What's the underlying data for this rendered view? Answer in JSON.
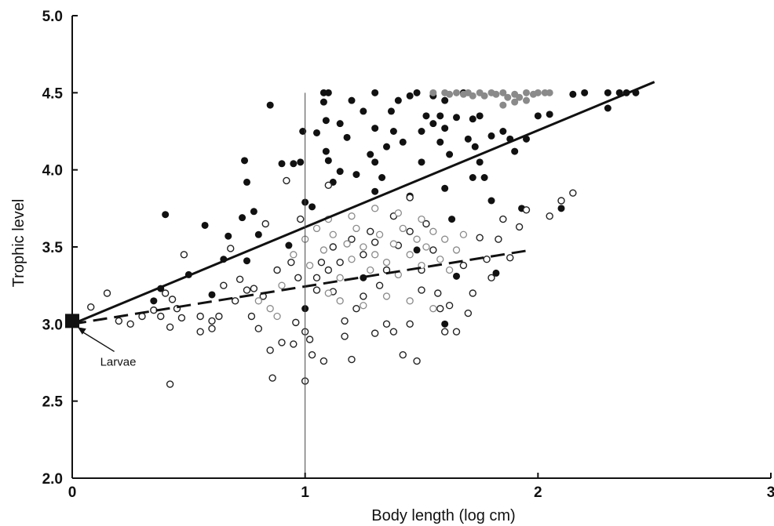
{
  "chart_data": {
    "type": "scatter",
    "title": "",
    "xlabel": "Body length (log cm)",
    "ylabel": "Trophic level",
    "xlim": [
      0,
      3
    ],
    "ylim": [
      2.0,
      5.0
    ],
    "x_ticks": [
      0,
      1,
      2,
      3
    ],
    "x_tick_labels": [
      "0",
      "1",
      "2",
      "3"
    ],
    "y_ticks": [
      2.0,
      2.5,
      3.0,
      3.5,
      4.0,
      4.5,
      5.0
    ],
    "y_tick_labels": [
      "2.0",
      "2.5",
      "3.0",
      "3.5",
      "4.0",
      "4.5",
      "5.0"
    ],
    "grid": false,
    "reference_line_x": 1,
    "colors": {
      "filled": "#111111",
      "open": "#222222",
      "axis": "#111111"
    },
    "series": [
      {
        "marker": "filled-circle",
        "points": [
          [
            0.35,
            3.15
          ],
          [
            0.38,
            3.23
          ],
          [
            0.4,
            3.71
          ],
          [
            0.5,
            3.32
          ],
          [
            0.57,
            3.64
          ],
          [
            0.6,
            3.19
          ],
          [
            0.65,
            3.42
          ],
          [
            0.67,
            3.57
          ],
          [
            0.73,
            3.69
          ],
          [
            0.74,
            4.06
          ],
          [
            0.75,
            3.92
          ],
          [
            0.75,
            3.41
          ],
          [
            0.78,
            3.73
          ],
          [
            0.8,
            3.58
          ],
          [
            0.85,
            4.42
          ],
          [
            0.9,
            4.04
          ],
          [
            0.93,
            3.51
          ],
          [
            0.95,
            4.04
          ],
          [
            0.98,
            4.05
          ],
          [
            0.99,
            4.25
          ],
          [
            1.0,
            3.1
          ],
          [
            1.0,
            3.79
          ],
          [
            1.03,
            3.76
          ],
          [
            1.05,
            4.24
          ],
          [
            1.08,
            4.5
          ],
          [
            1.08,
            4.44
          ],
          [
            1.09,
            4.32
          ],
          [
            1.09,
            4.12
          ],
          [
            1.1,
            4.06
          ],
          [
            1.1,
            4.5
          ],
          [
            1.12,
            3.92
          ],
          [
            1.15,
            4.3
          ],
          [
            1.15,
            3.99
          ],
          [
            1.18,
            4.21
          ],
          [
            1.2,
            4.45
          ],
          [
            1.22,
            3.97
          ],
          [
            1.25,
            4.38
          ],
          [
            1.28,
            4.1
          ],
          [
            1.3,
            4.5
          ],
          [
            1.3,
            4.27
          ],
          [
            1.3,
            4.05
          ],
          [
            1.3,
            3.86
          ],
          [
            1.33,
            3.95
          ],
          [
            1.35,
            4.15
          ],
          [
            1.37,
            4.38
          ],
          [
            1.38,
            4.25
          ],
          [
            1.4,
            4.45
          ],
          [
            1.42,
            4.18
          ],
          [
            1.45,
            4.48
          ],
          [
            1.45,
            3.83
          ],
          [
            1.48,
            4.5
          ],
          [
            1.5,
            4.25
          ],
          [
            1.5,
            4.05
          ],
          [
            1.52,
            4.35
          ],
          [
            1.55,
            4.3
          ],
          [
            1.55,
            4.48
          ],
          [
            1.58,
            4.18
          ],
          [
            1.58,
            4.35
          ],
          [
            1.6,
            4.45
          ],
          [
            1.6,
            4.27
          ],
          [
            1.6,
            3.88
          ],
          [
            1.62,
            4.1
          ],
          [
            1.63,
            3.68
          ],
          [
            1.65,
            4.34
          ],
          [
            1.68,
            4.5
          ],
          [
            1.7,
            4.2
          ],
          [
            1.72,
            4.33
          ],
          [
            1.72,
            3.95
          ],
          [
            1.73,
            4.15
          ],
          [
            1.75,
            4.35
          ],
          [
            1.75,
            4.05
          ],
          [
            1.77,
            3.95
          ],
          [
            1.8,
            3.8
          ],
          [
            1.8,
            4.22
          ],
          [
            1.85,
            4.25
          ],
          [
            1.88,
            4.2
          ],
          [
            1.9,
            4.12
          ],
          [
            1.93,
            3.75
          ],
          [
            1.95,
            4.2
          ],
          [
            2.0,
            4.35
          ],
          [
            2.05,
            4.36
          ],
          [
            2.1,
            3.75
          ],
          [
            2.15,
            4.49
          ],
          [
            2.2,
            4.5
          ],
          [
            2.3,
            4.5
          ],
          [
            2.3,
            4.4
          ],
          [
            2.35,
            4.5
          ],
          [
            2.38,
            4.5
          ],
          [
            2.42,
            4.5
          ],
          [
            1.6,
            3.0
          ],
          [
            1.65,
            3.31
          ],
          [
            1.82,
            3.33
          ],
          [
            1.48,
            3.48
          ],
          [
            1.25,
            3.3
          ]
        ]
      },
      {
        "marker": "open-circle",
        "points": [
          [
            0.08,
            3.11
          ],
          [
            0.15,
            3.2
          ],
          [
            0.2,
            3.02
          ],
          [
            0.25,
            3.0
          ],
          [
            0.3,
            3.05
          ],
          [
            0.35,
            3.09
          ],
          [
            0.38,
            3.05
          ],
          [
            0.4,
            3.2
          ],
          [
            0.42,
            2.98
          ],
          [
            0.43,
            3.16
          ],
          [
            0.45,
            3.1
          ],
          [
            0.47,
            3.04
          ],
          [
            0.48,
            3.45
          ],
          [
            0.42,
            2.61
          ],
          [
            0.55,
            2.95
          ],
          [
            0.6,
            3.02
          ],
          [
            0.63,
            3.05
          ],
          [
            0.65,
            3.25
          ],
          [
            0.7,
            3.15
          ],
          [
            0.72,
            3.29
          ],
          [
            0.75,
            3.22
          ],
          [
            0.77,
            3.05
          ],
          [
            0.8,
            2.97
          ],
          [
            0.82,
            3.18
          ],
          [
            0.85,
            2.83
          ],
          [
            0.86,
            2.65
          ],
          [
            0.88,
            3.35
          ],
          [
            0.9,
            2.88
          ],
          [
            0.92,
            3.93
          ],
          [
            0.94,
            3.4
          ],
          [
            0.95,
            2.87
          ],
          [
            0.96,
            3.01
          ],
          [
            0.98,
            3.68
          ],
          [
            1.0,
            2.63
          ],
          [
            1.0,
            2.95
          ],
          [
            1.02,
            2.9
          ],
          [
            1.03,
            2.8
          ],
          [
            1.05,
            3.3
          ],
          [
            1.07,
            3.4
          ],
          [
            1.08,
            2.76
          ],
          [
            1.1,
            3.35
          ],
          [
            1.1,
            3.9
          ],
          [
            1.12,
            3.21
          ],
          [
            1.15,
            3.4
          ],
          [
            1.17,
            2.92
          ],
          [
            1.2,
            3.55
          ],
          [
            1.2,
            2.77
          ],
          [
            1.22,
            3.1
          ],
          [
            1.25,
            3.45
          ],
          [
            1.28,
            3.6
          ],
          [
            1.3,
            2.94
          ],
          [
            1.32,
            3.25
          ],
          [
            1.35,
            3.0
          ],
          [
            1.38,
            2.95
          ],
          [
            1.38,
            3.7
          ],
          [
            1.4,
            3.51
          ],
          [
            1.42,
            2.8
          ],
          [
            1.45,
            3.6
          ],
          [
            1.45,
            3.0
          ],
          [
            1.48,
            2.76
          ],
          [
            1.5,
            3.35
          ],
          [
            1.52,
            3.65
          ],
          [
            1.55,
            3.48
          ],
          [
            1.57,
            3.2
          ],
          [
            1.6,
            2.95
          ],
          [
            1.62,
            3.12
          ],
          [
            1.65,
            2.95
          ],
          [
            1.68,
            3.38
          ],
          [
            1.7,
            3.07
          ],
          [
            1.72,
            3.2
          ],
          [
            1.75,
            3.56
          ],
          [
            1.78,
            3.42
          ],
          [
            1.8,
            3.3
          ],
          [
            1.83,
            3.55
          ],
          [
            1.85,
            3.68
          ],
          [
            1.88,
            3.43
          ],
          [
            1.92,
            3.63
          ],
          [
            1.95,
            3.74
          ],
          [
            2.05,
            3.7
          ],
          [
            2.1,
            3.8
          ],
          [
            2.15,
            3.85
          ],
          [
            0.55,
            3.05
          ],
          [
            0.6,
            2.97
          ],
          [
            0.68,
            3.49
          ],
          [
            0.78,
            3.23
          ],
          [
            0.83,
            3.65
          ],
          [
            1.17,
            3.02
          ],
          [
            1.25,
            3.18
          ],
          [
            1.58,
            3.1
          ],
          [
            1.5,
            3.22
          ],
          [
            1.35,
            3.35
          ],
          [
            1.3,
            3.53
          ],
          [
            1.12,
            3.5
          ],
          [
            1.05,
            3.22
          ],
          [
            0.97,
            3.3
          ],
          [
            1.45,
            3.82
          ]
        ]
      },
      {
        "marker": "gray-open-circle",
        "points": [
          [
            0.9,
            3.25
          ],
          [
            0.95,
            3.45
          ],
          [
            1.0,
            3.55
          ],
          [
            1.02,
            3.38
          ],
          [
            1.05,
            3.62
          ],
          [
            1.08,
            3.48
          ],
          [
            1.1,
            3.2
          ],
          [
            1.12,
            3.58
          ],
          [
            1.15,
            3.3
          ],
          [
            1.18,
            3.52
          ],
          [
            1.2,
            3.42
          ],
          [
            1.22,
            3.62
          ],
          [
            1.25,
            3.5
          ],
          [
            1.28,
            3.35
          ],
          [
            1.3,
            3.45
          ],
          [
            1.32,
            3.58
          ],
          [
            1.35,
            3.4
          ],
          [
            1.38,
            3.52
          ],
          [
            1.4,
            3.32
          ],
          [
            1.42,
            3.62
          ],
          [
            1.45,
            3.45
          ],
          [
            1.48,
            3.55
          ],
          [
            1.5,
            3.38
          ],
          [
            1.52,
            3.5
          ],
          [
            1.55,
            3.6
          ],
          [
            1.58,
            3.42
          ],
          [
            1.6,
            3.55
          ],
          [
            1.62,
            3.35
          ],
          [
            1.65,
            3.48
          ],
          [
            1.68,
            3.58
          ],
          [
            1.2,
            3.7
          ],
          [
            1.3,
            3.75
          ],
          [
            1.4,
            3.72
          ],
          [
            1.5,
            3.68
          ],
          [
            1.15,
            3.15
          ],
          [
            1.25,
            3.12
          ],
          [
            1.35,
            3.18
          ],
          [
            1.45,
            3.15
          ],
          [
            1.55,
            3.1
          ],
          [
            1.1,
            3.68
          ],
          [
            0.85,
            3.1
          ],
          [
            0.88,
            3.05
          ],
          [
            0.8,
            3.15
          ]
        ]
      },
      {
        "marker": "gray-filled-circle",
        "points": [
          [
            1.55,
            4.5
          ],
          [
            1.6,
            4.5
          ],
          [
            1.62,
            4.49
          ],
          [
            1.65,
            4.5
          ],
          [
            1.68,
            4.49
          ],
          [
            1.7,
            4.5
          ],
          [
            1.72,
            4.48
          ],
          [
            1.75,
            4.5
          ],
          [
            1.77,
            4.48
          ],
          [
            1.8,
            4.5
          ],
          [
            1.82,
            4.49
          ],
          [
            1.85,
            4.5
          ],
          [
            1.87,
            4.47
          ],
          [
            1.9,
            4.49
          ],
          [
            1.92,
            4.47
          ],
          [
            1.95,
            4.5
          ],
          [
            1.98,
            4.49
          ],
          [
            2.0,
            4.5
          ],
          [
            2.03,
            4.5
          ],
          [
            2.05,
            4.5
          ],
          [
            1.85,
            4.42
          ],
          [
            1.9,
            4.44
          ],
          [
            1.95,
            4.45
          ]
        ]
      }
    ],
    "fit_lines": [
      {
        "style": "solid",
        "x": [
          0,
          2.5
        ],
        "y": [
          3.0,
          4.57
        ]
      },
      {
        "style": "dashed",
        "x": [
          0,
          1.97
        ],
        "y": [
          3.0,
          3.48
        ]
      }
    ],
    "larvae_marker": {
      "x": 0,
      "y": 3.02
    },
    "annotations": [
      {
        "text": "Larvae",
        "x": 0.12,
        "y": 2.73
      }
    ]
  }
}
